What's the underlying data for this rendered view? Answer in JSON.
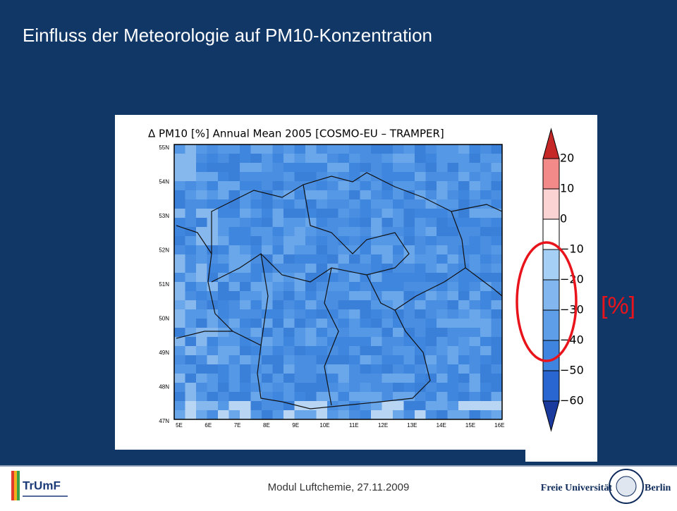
{
  "header": {
    "title": "Einfluss der Meteorologie auf  PM10-Konzentration"
  },
  "figure": {
    "title": "Δ PM10 [%] Annual Mean 2005 [COSMO-EU – TRAMPER]",
    "lat_labels": [
      "55N",
      "54N",
      "53N",
      "52N",
      "51N",
      "50N",
      "49N",
      "48N",
      "47N"
    ],
    "lon_labels": [
      "5E",
      "6E",
      "7E",
      "8E",
      "9E",
      "10E",
      "11E",
      "12E",
      "13E",
      "14E",
      "15E",
      "16E"
    ],
    "colorbar_labels": [
      "20",
      "10",
      "0",
      "−10",
      "−20",
      "−30",
      "−40",
      "−50",
      "−60"
    ],
    "unit": "[%]"
  },
  "footer": {
    "text": "Modul Luftchemie, 27.11.2009",
    "logo_left": "TrUmF",
    "logo_right_1": "Freie Universität",
    "logo_right_2": "Berlin"
  }
}
